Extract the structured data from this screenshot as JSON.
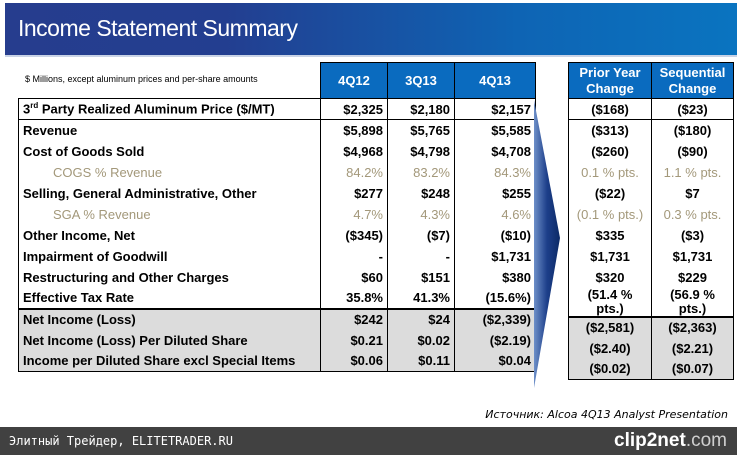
{
  "title": "Income Statement Summary",
  "note": "$ Millions, except aluminum prices and per-share amounts",
  "columns": [
    "4Q12",
    "3Q13",
    "4Q13"
  ],
  "change_columns": [
    "Prior Year Change",
    "Sequential Change"
  ],
  "rows": [
    {
      "label_pre": "3",
      "label_sup": "rd",
      "label": " Party Realized Aluminum Price ($/MT)",
      "v": [
        "$2,325",
        "$2,180",
        "$2,157"
      ],
      "c": [
        "($168)",
        "($23)"
      ]
    },
    {
      "label": "Revenue",
      "v": [
        "$5,898",
        "$5,765",
        "$5,585"
      ],
      "c": [
        "($313)",
        "($180)"
      ]
    },
    {
      "label": "Cost of Goods Sold",
      "v": [
        "$4,968",
        "$4,798",
        "$4,708"
      ],
      "c": [
        "($260)",
        "($90)"
      ]
    },
    {
      "label": "COGS % Revenue",
      "v": [
        "84.2%",
        "83.2%",
        "84.3%"
      ],
      "c": [
        "0.1 % pts.",
        "1.1 % pts."
      ]
    },
    {
      "label": "Selling, General Administrative, Other",
      "v": [
        "$277",
        "$248",
        "$255"
      ],
      "c": [
        "($22)",
        "$7"
      ]
    },
    {
      "label": "SGA % Revenue",
      "v": [
        "4.7%",
        "4.3%",
        "4.6%"
      ],
      "c": [
        "(0.1 % pts.)",
        "0.3 % pts."
      ]
    },
    {
      "label": "Other Income, Net",
      "v": [
        "($345)",
        "($7)",
        "($10)"
      ],
      "c": [
        "$335",
        "($3)"
      ]
    },
    {
      "label": "Impairment of Goodwill",
      "v": [
        "-",
        "-",
        "$1,731"
      ],
      "c": [
        "$1,731",
        "$1,731"
      ]
    },
    {
      "label": "Restructuring and Other Charges",
      "v": [
        "$60",
        "$151",
        "$380"
      ],
      "c": [
        "$320",
        "$229"
      ]
    },
    {
      "label": "Effective Tax Rate",
      "v": [
        "35.8%",
        "41.3%",
        "(15.6%)"
      ],
      "c": [
        "(51.4 % pts.)",
        "(56.9 % pts.)"
      ]
    },
    {
      "label": "Net Income (Loss)",
      "v": [
        "$242",
        "$24",
        "($2,339)"
      ],
      "c": [
        "($2,581)",
        "($2,363)"
      ]
    },
    {
      "label": "Net Income (Loss) Per Diluted Share",
      "v": [
        "$0.21",
        "$0.02",
        "($2.19)"
      ],
      "c": [
        "($2.40)",
        "($2.21)"
      ]
    },
    {
      "label": "Income per Diluted Share excl Special Items",
      "v": [
        "$0.06",
        "$0.11",
        "$0.04"
      ],
      "c": [
        "($0.02)",
        "($0.07)"
      ]
    }
  ],
  "source": "Источник: Alcoa 4Q13 Analyst Presentation",
  "footer": {
    "left": "Элитный Трейдер, ELITETRADER.RU",
    "brand_main": "clip2net",
    "brand_tld": ".com"
  }
}
